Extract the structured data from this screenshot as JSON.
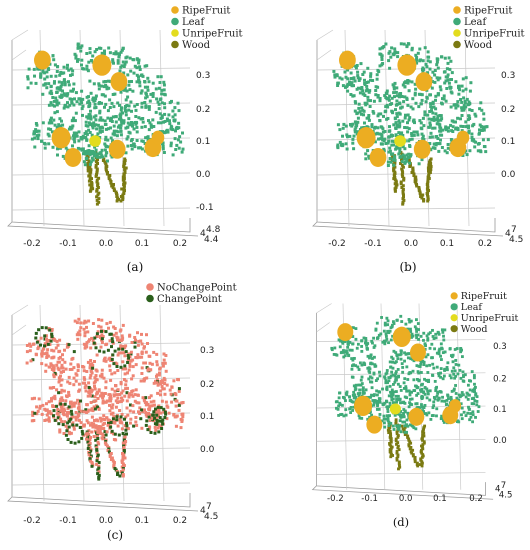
{
  "colors": {
    "RipeFruit": "#ecad22",
    "Leaf": "#3faa78",
    "UnripeFruit": "#e3dc1e",
    "Wood": "#7b7a12",
    "NoChangePoint": "#ee8473",
    "ChangePoint": "#2a5f1b"
  },
  "chart_data": [
    {
      "panel": "a",
      "caption": "(a)",
      "type": "scatter",
      "legend": [
        "RipeFruit",
        "Leaf",
        "UnripeFruit",
        "Wood"
      ],
      "legend_position": "top-right",
      "x_ticks": [
        "-0.2",
        "-0.1",
        "0.0",
        "0.1",
        "0.2"
      ],
      "y_ticks": [
        "0.3",
        "0.2",
        "0.1",
        "0.0",
        "-0.1"
      ],
      "corner_ticks": [
        "4",
        "4.8",
        "4.4"
      ],
      "xlim": [
        -0.25,
        0.22
      ],
      "ylim": [
        -0.15,
        0.35
      ]
    },
    {
      "panel": "b",
      "caption": "(b)",
      "type": "scatter",
      "legend": [
        "RipeFruit",
        "Leaf",
        "UnripeFruit",
        "Wood"
      ],
      "legend_position": "top-right",
      "x_ticks": [
        "-0.2",
        "-0.1",
        "0.0",
        "0.1",
        "0.2"
      ],
      "y_ticks": [
        "0.3",
        "0.2",
        "0.1",
        "0.0"
      ],
      "corner_ticks": [
        "4",
        "7",
        "4.5"
      ],
      "xlim": [
        -0.25,
        0.22
      ],
      "ylim": [
        -0.15,
        0.35
      ]
    },
    {
      "panel": "c",
      "caption": "(c)",
      "type": "scatter",
      "legend": [
        "NoChangePoint",
        "ChangePoint"
      ],
      "legend_position": "top-right",
      "x_ticks": [
        "-0.2",
        "-0.1",
        "0.0",
        "0.1",
        "0.2"
      ],
      "y_ticks": [
        "0.3",
        "0.2",
        "0.1",
        "0.0"
      ],
      "corner_ticks": [
        "4",
        "7",
        "4.5"
      ],
      "xlim": [
        -0.25,
        0.22
      ],
      "ylim": [
        -0.15,
        0.35
      ]
    },
    {
      "panel": "d",
      "caption": "(d)",
      "type": "scatter",
      "legend": [
        "RipeFruit",
        "Leaf",
        "UnripeFruit",
        "Wood"
      ],
      "legend_position": "top-right",
      "x_ticks": [
        "-0.2",
        "-0.1",
        "0.0",
        "0.1",
        "0.2"
      ],
      "y_ticks": [
        "0.3",
        "0.2",
        "0.1",
        "0.0"
      ],
      "corner_ticks": [
        "4",
        "7",
        "4.5"
      ],
      "xlim": [
        -0.25,
        0.22
      ],
      "ylim": [
        -0.15,
        0.35
      ]
    }
  ]
}
